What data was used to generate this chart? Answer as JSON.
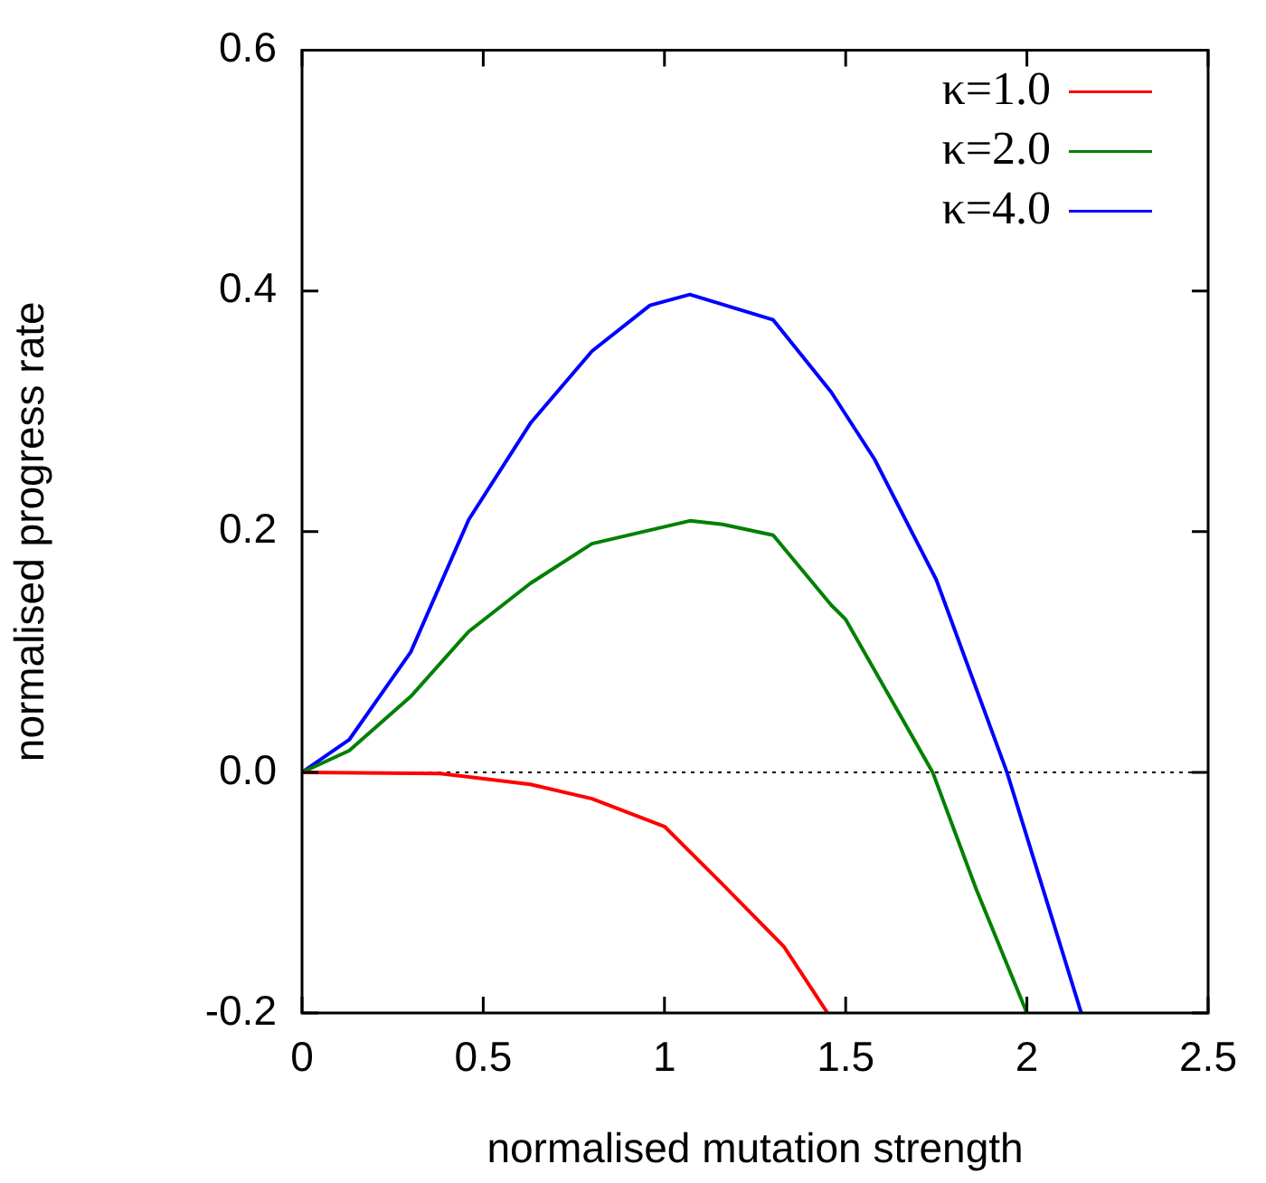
{
  "chart_data": {
    "type": "line",
    "xlabel": "normalised mutation strength",
    "ylabel": "normalised progress rate",
    "xlim": [
      0,
      2.5
    ],
    "xticks": [
      0,
      0.5,
      1,
      1.5,
      2,
      2.5
    ],
    "ylim": [
      -0.2,
      0.6
    ],
    "yticks": [
      {
        "value": -0.2,
        "label": "-0.2"
      },
      {
        "value": 0,
        "label": "0.0"
      },
      {
        "value": 0.2,
        "label": "0.2"
      },
      {
        "value": 0.4,
        "label": "0.4"
      },
      {
        "value": 0.6,
        "label": "0.6"
      }
    ],
    "grid": false,
    "legend": "top right",
    "marker": "none",
    "line_style": "solid",
    "ref_lines": [
      {
        "axis": "y",
        "value": 0,
        "color": "#000000",
        "line_style": "dotted"
      }
    ],
    "series": [
      {
        "name": "κ=1.0",
        "color": "#ff0000",
        "x": [
          0,
          0.38,
          0.63,
          0.8,
          1.0,
          1.16,
          1.33,
          1.45
        ],
        "values": [
          0,
          -0.001,
          -0.01,
          -0.022,
          -0.045,
          -0.093,
          -0.145,
          -0.2
        ]
      },
      {
        "name": "κ=2.0",
        "color": "#008000",
        "x": [
          0,
          0.13,
          0.3,
          0.46,
          0.63,
          0.8,
          1.07,
          1.16,
          1.3,
          1.46,
          1.5,
          1.74,
          1.86,
          2.0
        ],
        "values": [
          0,
          0.018,
          0.063,
          0.117,
          0.157,
          0.19,
          0.209,
          0.206,
          0.197,
          0.139,
          0.127,
          0,
          -0.097,
          -0.2
        ]
      },
      {
        "name": "κ=4.0",
        "color": "#0000ff",
        "x": [
          0,
          0.13,
          0.3,
          0.46,
          0.63,
          0.8,
          0.96,
          1.07,
          1.3,
          1.46,
          1.58,
          1.75,
          1.945,
          2.15
        ],
        "values": [
          0,
          0.027,
          0.1,
          0.21,
          0.29,
          0.35,
          0.388,
          0.397,
          0.376,
          0.316,
          0.26,
          0.16,
          0,
          -0.2
        ]
      }
    ]
  }
}
